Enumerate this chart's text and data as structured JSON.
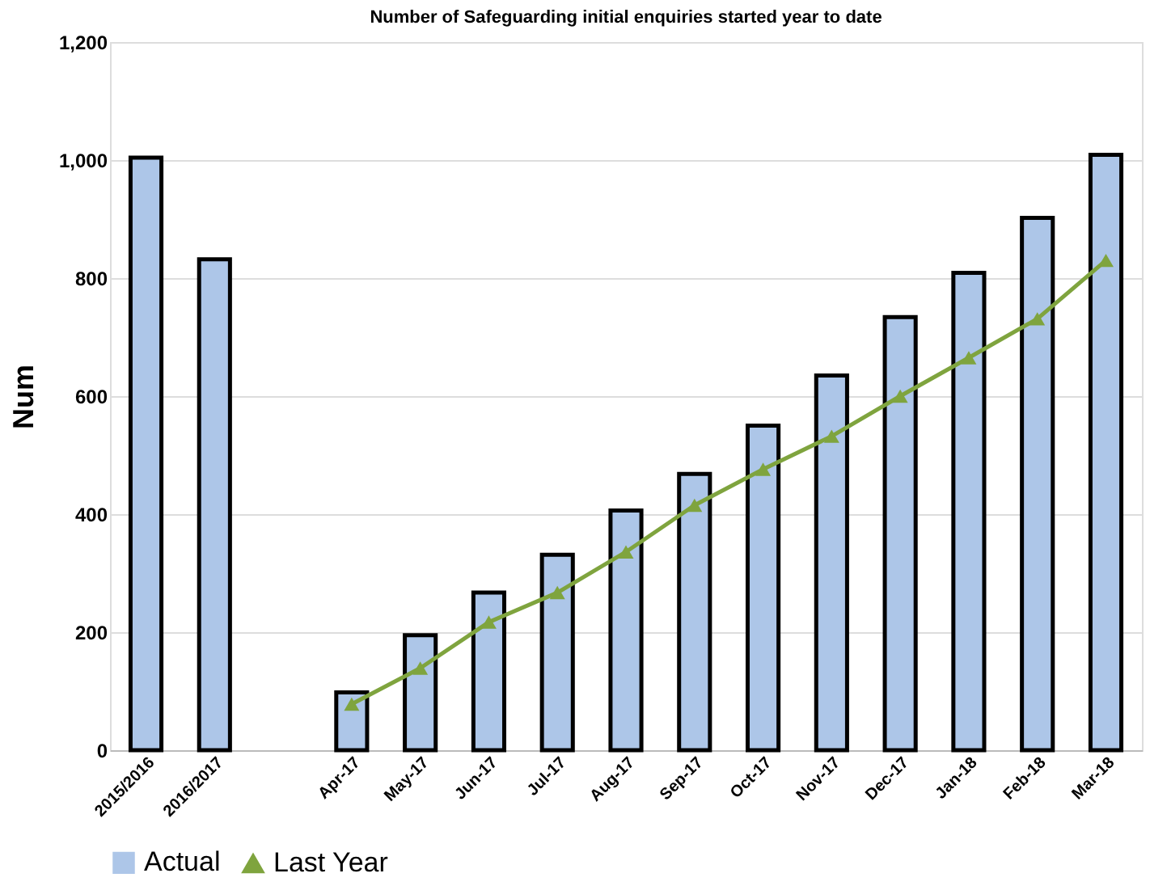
{
  "chart_data": {
    "type": "bar",
    "title": "Number of Safeguarding initial enquiries started year to date",
    "ylabel": "Num",
    "categories": [
      "2015/2016",
      "2016/2017",
      null,
      "Apr-17",
      "May-17",
      "Jun-17",
      "Jul-17",
      "Aug-17",
      "Sep-17",
      "Oct-17",
      "Nov-17",
      "Dec-17",
      "Jan-18",
      "Feb-18",
      "Mar-18"
    ],
    "series": [
      {
        "name": "Actual",
        "color": "#adc6e8",
        "values": [
          1004,
          832,
          null,
          98,
          195,
          267,
          331,
          406,
          468,
          550,
          635,
          734,
          809,
          902,
          1009
        ]
      },
      {
        "name": "Last Year",
        "color": "#7fa43e",
        "type": "line",
        "marker": "triangle",
        "values": [
          null,
          null,
          null,
          78,
          139,
          217,
          267,
          336,
          415,
          476,
          532,
          600,
          665,
          731,
          830
        ]
      }
    ],
    "ylim": [
      0,
      1200
    ],
    "yticks": [
      0,
      200,
      400,
      600,
      800,
      {
        "value": 1000,
        "label": "1,000"
      },
      {
        "value": 1200,
        "label": "1,200"
      }
    ],
    "grid": "y",
    "legend": "bottom"
  }
}
